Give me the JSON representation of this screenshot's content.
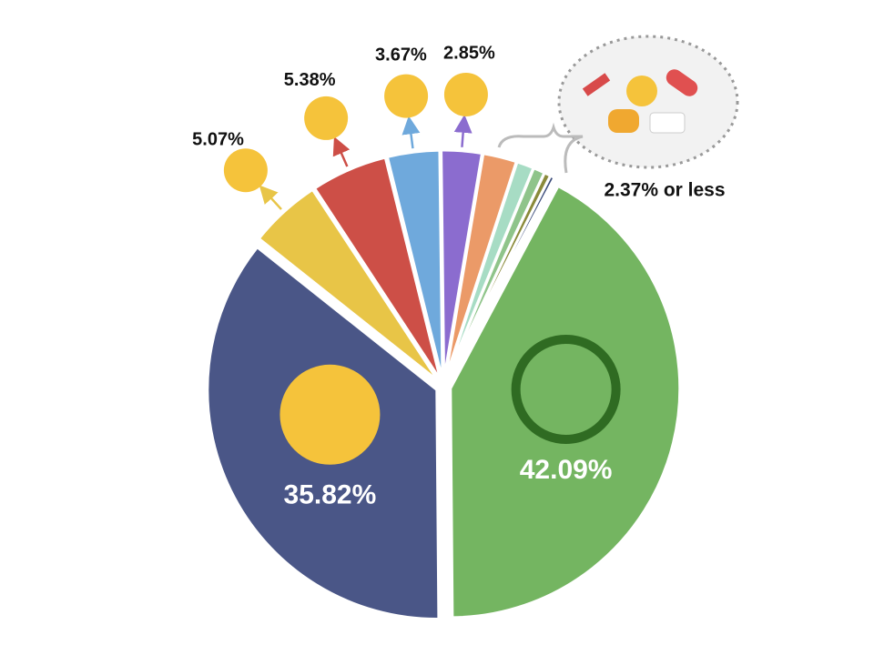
{
  "chart_data": {
    "type": "pie",
    "values": [
      42.09,
      35.82,
      5.07,
      5.38,
      3.67,
      2.85,
      2.37,
      1.2,
      0.8,
      0.45,
      0.3
    ],
    "value_labels": [
      "42.09%",
      "35.82%",
      "5.07%",
      "5.38%",
      "3.67%",
      "2.85%",
      null,
      null,
      null,
      null,
      null
    ],
    "colors": [
      "#74b561",
      "#4a5687",
      "#e8c547",
      "#cd4f47",
      "#6fa9dc",
      "#8b6ccf",
      "#eb9a68",
      "#a7dcc4",
      "#8fc48a",
      "#8a8a3a",
      "#3b4b7a"
    ],
    "start_angle": 28,
    "annotation": "2.37% or less"
  }
}
